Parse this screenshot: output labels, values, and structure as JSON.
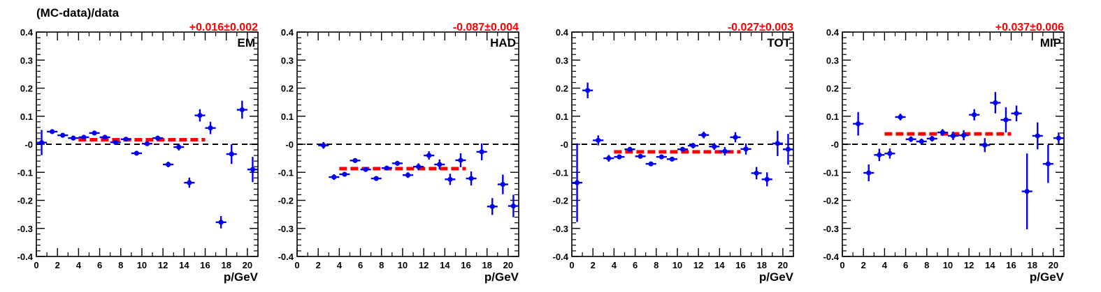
{
  "figure": {
    "ylabel": "(MC-data)/data",
    "colors": {
      "data": "#0000ee",
      "fit": "#ff0000",
      "axis": "#000000",
      "reference": "#000000"
    }
  },
  "chart_data": [
    {
      "type": "scatter",
      "label": "EM",
      "fit_label": "+0.016±0.002",
      "xlabel": "p/GeV",
      "xlim": [
        0,
        21
      ],
      "ylim": [
        -0.4,
        0.4
      ],
      "x_ticks": [
        0,
        2,
        4,
        6,
        8,
        10,
        12,
        14,
        16,
        18,
        20
      ],
      "y_ticks": [
        -0.4,
        -0.3,
        -0.2,
        -0.1,
        0,
        0.1,
        0.2,
        0.3,
        0.4
      ],
      "y_tick_labels": [
        "-0.4",
        "-0.3",
        "-0.2",
        "-0.1",
        "-0",
        "0.1",
        "0.2",
        "0.3",
        "0.4"
      ],
      "reference_y": 0,
      "fit": {
        "x": [
          4,
          16
        ],
        "y": 0.016
      },
      "points": [
        {
          "x": 0.5,
          "y": 0.006,
          "err": 0.045
        },
        {
          "x": 1.5,
          "y": 0.045,
          "err": 0.008
        },
        {
          "x": 2.5,
          "y": 0.032,
          "err": 0.006
        },
        {
          "x": 3.5,
          "y": 0.022,
          "err": 0.006
        },
        {
          "x": 4.5,
          "y": 0.025,
          "err": 0.006
        },
        {
          "x": 5.5,
          "y": 0.04,
          "err": 0.006
        },
        {
          "x": 6.5,
          "y": 0.025,
          "err": 0.006
        },
        {
          "x": 7.5,
          "y": 0.007,
          "err": 0.006
        },
        {
          "x": 8.5,
          "y": 0.018,
          "err": 0.006
        },
        {
          "x": 9.5,
          "y": -0.032,
          "err": 0.006
        },
        {
          "x": 10.5,
          "y": 0.002,
          "err": 0.008
        },
        {
          "x": 11.5,
          "y": 0.022,
          "err": 0.008
        },
        {
          "x": 12.5,
          "y": -0.072,
          "err": 0.01
        },
        {
          "x": 13.5,
          "y": -0.01,
          "err": 0.012
        },
        {
          "x": 14.5,
          "y": -0.137,
          "err": 0.018
        },
        {
          "x": 15.5,
          "y": 0.103,
          "err": 0.022
        },
        {
          "x": 16.5,
          "y": 0.058,
          "err": 0.022
        },
        {
          "x": 17.5,
          "y": -0.278,
          "err": 0.022
        },
        {
          "x": 18.5,
          "y": -0.035,
          "err": 0.035
        },
        {
          "x": 19.5,
          "y": 0.123,
          "err": 0.032
        },
        {
          "x": 20.5,
          "y": -0.09,
          "err": 0.045
        }
      ]
    },
    {
      "type": "scatter",
      "label": "HAD",
      "fit_label": "-0.087±0.004",
      "xlabel": "p/GeV",
      "xlim": [
        0,
        21
      ],
      "ylim": [
        -0.4,
        0.4
      ],
      "x_ticks": [
        0,
        2,
        4,
        6,
        8,
        10,
        12,
        14,
        16,
        18,
        20
      ],
      "y_ticks": [
        -0.4,
        -0.3,
        -0.2,
        -0.1,
        0,
        0.1,
        0.2,
        0.3,
        0.4
      ],
      "y_tick_labels": [
        "-0.4",
        "-0.3",
        "-0.2",
        "-0.1",
        "-0",
        "0.1",
        "0.2",
        "0.3",
        "0.4"
      ],
      "reference_y": 0,
      "fit": {
        "x": [
          4,
          16
        ],
        "y": -0.087
      },
      "points": [
        {
          "x": 2.5,
          "y": -0.004,
          "err": 0.012
        },
        {
          "x": 3.5,
          "y": -0.117,
          "err": 0.01
        },
        {
          "x": 4.5,
          "y": -0.107,
          "err": 0.008
        },
        {
          "x": 5.5,
          "y": -0.058,
          "err": 0.006
        },
        {
          "x": 6.5,
          "y": -0.09,
          "err": 0.006
        },
        {
          "x": 7.5,
          "y": -0.122,
          "err": 0.006
        },
        {
          "x": 8.5,
          "y": -0.085,
          "err": 0.006
        },
        {
          "x": 9.5,
          "y": -0.068,
          "err": 0.008
        },
        {
          "x": 10.5,
          "y": -0.11,
          "err": 0.01
        },
        {
          "x": 11.5,
          "y": -0.08,
          "err": 0.012
        },
        {
          "x": 12.5,
          "y": -0.04,
          "err": 0.015
        },
        {
          "x": 13.5,
          "y": -0.072,
          "err": 0.018
        },
        {
          "x": 14.5,
          "y": -0.125,
          "err": 0.02
        },
        {
          "x": 15.5,
          "y": -0.057,
          "err": 0.025
        },
        {
          "x": 16.5,
          "y": -0.122,
          "err": 0.025
        },
        {
          "x": 17.5,
          "y": -0.027,
          "err": 0.03
        },
        {
          "x": 18.5,
          "y": -0.222,
          "err": 0.03
        },
        {
          "x": 19.5,
          "y": -0.143,
          "err": 0.035
        },
        {
          "x": 20.5,
          "y": -0.22,
          "err": 0.04
        }
      ]
    },
    {
      "type": "scatter",
      "label": "TOT",
      "fit_label": "-0.027±0.003",
      "xlabel": "p/GeV",
      "xlim": [
        0,
        21
      ],
      "ylim": [
        -0.4,
        0.4
      ],
      "x_ticks": [
        0,
        2,
        4,
        6,
        8,
        10,
        12,
        14,
        16,
        18,
        20
      ],
      "y_ticks": [
        -0.4,
        -0.3,
        -0.2,
        -0.1,
        0,
        0.1,
        0.2,
        0.3,
        0.4
      ],
      "y_tick_labels": [
        "-0.4",
        "-0.3",
        "-0.2",
        "-0.1",
        "-0",
        "0.1",
        "0.2",
        "0.3",
        "0.4"
      ],
      "reference_y": 0,
      "fit": {
        "x": [
          4,
          16
        ],
        "y": -0.027
      },
      "points": [
        {
          "x": 0.5,
          "y": -0.137,
          "err": 0.14
        },
        {
          "x": 1.5,
          "y": 0.192,
          "err": 0.028
        },
        {
          "x": 2.5,
          "y": 0.014,
          "err": 0.018
        },
        {
          "x": 3.5,
          "y": -0.05,
          "err": 0.012
        },
        {
          "x": 4.5,
          "y": -0.045,
          "err": 0.008
        },
        {
          "x": 5.5,
          "y": -0.018,
          "err": 0.006
        },
        {
          "x": 6.5,
          "y": -0.043,
          "err": 0.006
        },
        {
          "x": 7.5,
          "y": -0.07,
          "err": 0.006
        },
        {
          "x": 8.5,
          "y": -0.045,
          "err": 0.006
        },
        {
          "x": 9.5,
          "y": -0.053,
          "err": 0.008
        },
        {
          "x": 10.5,
          "y": -0.018,
          "err": 0.008
        },
        {
          "x": 11.5,
          "y": -0.005,
          "err": 0.01
        },
        {
          "x": 12.5,
          "y": 0.033,
          "err": 0.012
        },
        {
          "x": 13.5,
          "y": -0.008,
          "err": 0.012
        },
        {
          "x": 14.5,
          "y": -0.025,
          "err": 0.015
        },
        {
          "x": 15.5,
          "y": 0.025,
          "err": 0.018
        },
        {
          "x": 16.5,
          "y": -0.017,
          "err": 0.02
        },
        {
          "x": 17.5,
          "y": -0.103,
          "err": 0.022
        },
        {
          "x": 18.5,
          "y": -0.125,
          "err": 0.025
        },
        {
          "x": 19.5,
          "y": 0.003,
          "err": 0.045
        },
        {
          "x": 20.5,
          "y": -0.018,
          "err": 0.055
        }
      ]
    },
    {
      "type": "scatter",
      "label": "MIP",
      "fit_label": "+0.037±0.006",
      "xlabel": "p/GeV",
      "xlim": [
        0,
        21
      ],
      "ylim": [
        -0.4,
        0.4
      ],
      "x_ticks": [
        0,
        2,
        4,
        6,
        8,
        10,
        12,
        14,
        16,
        18,
        20
      ],
      "y_ticks": [
        -0.4,
        -0.3,
        -0.2,
        -0.1,
        0,
        0.1,
        0.2,
        0.3,
        0.4
      ],
      "y_tick_labels": [
        "-0.4",
        "-0.3",
        "-0.2",
        "-0.1",
        "-0",
        "0.1",
        "0.2",
        "0.3",
        "0.4"
      ],
      "reference_y": 0,
      "fit": {
        "x": [
          4,
          16
        ],
        "y": 0.037
      },
      "points": [
        {
          "x": 1.5,
          "y": 0.073,
          "err": 0.042
        },
        {
          "x": 2.5,
          "y": -0.102,
          "err": 0.03
        },
        {
          "x": 3.5,
          "y": -0.038,
          "err": 0.022
        },
        {
          "x": 4.5,
          "y": -0.033,
          "err": 0.018
        },
        {
          "x": 5.5,
          "y": 0.097,
          "err": 0.012
        },
        {
          "x": 6.5,
          "y": 0.018,
          "err": 0.01
        },
        {
          "x": 7.5,
          "y": 0.01,
          "err": 0.01
        },
        {
          "x": 8.5,
          "y": 0.02,
          "err": 0.01
        },
        {
          "x": 9.5,
          "y": 0.042,
          "err": 0.012
        },
        {
          "x": 10.5,
          "y": 0.03,
          "err": 0.015
        },
        {
          "x": 11.5,
          "y": 0.032,
          "err": 0.018
        },
        {
          "x": 12.5,
          "y": 0.105,
          "err": 0.02
        },
        {
          "x": 13.5,
          "y": -0.003,
          "err": 0.025
        },
        {
          "x": 14.5,
          "y": 0.148,
          "err": 0.038
        },
        {
          "x": 15.5,
          "y": 0.087,
          "err": 0.045
        },
        {
          "x": 16.5,
          "y": 0.11,
          "err": 0.028
        },
        {
          "x": 17.5,
          "y": -0.168,
          "err": 0.135
        },
        {
          "x": 18.5,
          "y": 0.03,
          "err": 0.048
        },
        {
          "x": 19.5,
          "y": -0.07,
          "err": 0.068
        },
        {
          "x": 20.5,
          "y": 0.022,
          "err": 0.02
        }
      ]
    }
  ]
}
